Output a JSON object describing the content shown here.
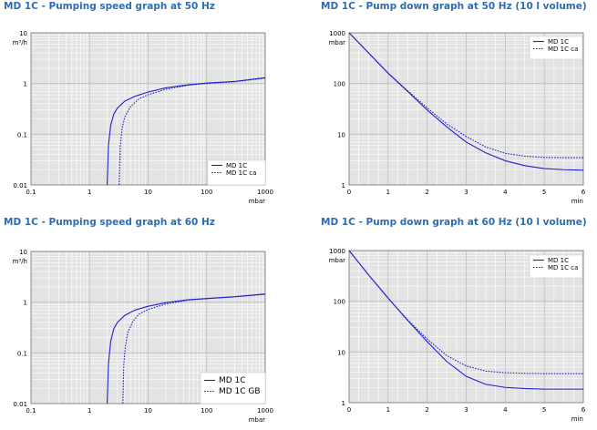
{
  "chart_data": [
    {
      "type": "line",
      "title": "MD 1C - Pumping speed graph at 50 Hz",
      "xlabel": "mbar",
      "ylabel": "m³/h",
      "xscale": "log",
      "yscale": "log",
      "xlim": [
        0.1,
        1000
      ],
      "ylim": [
        0.01,
        10
      ],
      "xticks": [
        "0.1",
        "1",
        "10",
        "100",
        "1000"
      ],
      "yticks": [
        "10",
        "1",
        "0.1",
        "0.01"
      ],
      "grid": true,
      "legend": "bottom-right",
      "series": [
        {
          "name": "MD 1C",
          "style": "solid",
          "color": "#2020d0",
          "x": [
            2.0,
            2.1,
            2.3,
            2.6,
            3.0,
            4.0,
            6.0,
            10,
            20,
            50,
            100,
            300,
            1000
          ],
          "y": [
            0.01,
            0.06,
            0.15,
            0.25,
            0.33,
            0.45,
            0.56,
            0.68,
            0.82,
            0.95,
            1.02,
            1.1,
            1.3
          ]
        },
        {
          "name": "MD 1C ca",
          "style": "dotted",
          "color": "#2020d0",
          "x": [
            3.2,
            3.35,
            3.6,
            4.0,
            5.0,
            7.0,
            10,
            20,
            50,
            100,
            300,
            1000
          ],
          "y": [
            0.01,
            0.06,
            0.13,
            0.22,
            0.35,
            0.5,
            0.6,
            0.77,
            0.93,
            1.0,
            1.08,
            1.28
          ]
        }
      ]
    },
    {
      "type": "line",
      "title": "MD 1C - Pump down graph at 50 Hz (10 l volume)",
      "xlabel": "min",
      "ylabel": "mbar",
      "xscale": "linear",
      "yscale": "log",
      "xlim": [
        0,
        6
      ],
      "ylim": [
        1,
        1000
      ],
      "xticks": [
        "0",
        "1",
        "2",
        "3",
        "4",
        "5",
        "6"
      ],
      "yticks": [
        "1000",
        "100",
        "10",
        "1"
      ],
      "grid": true,
      "legend": "top-right",
      "series": [
        {
          "name": "MD 1C",
          "style": "solid",
          "color": "#2020d0",
          "x": [
            0,
            0.5,
            1,
            1.5,
            2,
            2.5,
            3,
            3.5,
            4,
            4.5,
            5,
            5.5,
            6
          ],
          "y": [
            1000,
            400,
            160,
            70,
            30,
            14,
            7,
            4.3,
            3.0,
            2.4,
            2.1,
            2.0,
            1.95
          ]
        },
        {
          "name": "MD 1C ca",
          "style": "dotted",
          "color": "#2020d0",
          "x": [
            0,
            0.5,
            1,
            1.5,
            2,
            2.5,
            3,
            3.5,
            4,
            4.5,
            5,
            5.5,
            6
          ],
          "y": [
            1000,
            400,
            160,
            72,
            33,
            16,
            9,
            5.6,
            4.2,
            3.7,
            3.5,
            3.45,
            3.45
          ]
        }
      ]
    },
    {
      "type": "line",
      "title": "MD 1C - Pumping speed graph at 60 Hz",
      "xlabel": "mbar",
      "ylabel": "m³/h",
      "xscale": "log",
      "yscale": "log",
      "xlim": [
        0.1,
        1000
      ],
      "ylim": [
        0.01,
        10
      ],
      "xticks": [
        "0.1",
        "1",
        "10",
        "100",
        "1000"
      ],
      "yticks": [
        "10",
        "1",
        "0.1",
        "0.01"
      ],
      "grid": true,
      "legend": "bottom-right",
      "series": [
        {
          "name": "MD 1C",
          "style": "solid",
          "color": "#2020d0",
          "x": [
            2.0,
            2.1,
            2.3,
            2.6,
            3.0,
            4.0,
            6.0,
            10,
            20,
            50,
            100,
            300,
            1000
          ],
          "y": [
            0.01,
            0.06,
            0.17,
            0.3,
            0.4,
            0.55,
            0.7,
            0.83,
            0.98,
            1.12,
            1.18,
            1.28,
            1.45
          ]
        },
        {
          "name": "MD 1C GB",
          "style": "dotted",
          "color": "#2020d0",
          "x": [
            3.7,
            3.85,
            4.1,
            4.5,
            5.5,
            7.0,
            10,
            20,
            50,
            100,
            300,
            1000
          ],
          "y": [
            0.01,
            0.06,
            0.14,
            0.25,
            0.42,
            0.58,
            0.72,
            0.92,
            1.1,
            1.17,
            1.27,
            1.43
          ]
        }
      ]
    },
    {
      "type": "line",
      "title": "MD 1C - Pump down graph at 60 Hz (10 l volume)",
      "xlabel": "min",
      "ylabel": "mbar",
      "xscale": "linear",
      "yscale": "log",
      "xlim": [
        0,
        6
      ],
      "ylim": [
        1,
        1000
      ],
      "xticks": [
        "0",
        "1",
        "2",
        "3",
        "4",
        "5",
        "6"
      ],
      "yticks": [
        "1000",
        "100",
        "10",
        "1"
      ],
      "grid": true,
      "legend": "top-right",
      "series": [
        {
          "name": "MD 1C",
          "style": "solid",
          "color": "#2020d0",
          "x": [
            0,
            0.5,
            1,
            1.5,
            2,
            2.5,
            3,
            3.5,
            4,
            4.5,
            5,
            5.5,
            6
          ],
          "y": [
            1000,
            330,
            115,
            42,
            16,
            6.5,
            3.3,
            2.3,
            2.0,
            1.9,
            1.85,
            1.85,
            1.85
          ]
        },
        {
          "name": "MD 1C ca",
          "style": "dotted",
          "color": "#2020d0",
          "x": [
            0,
            0.5,
            1,
            1.5,
            2,
            2.5,
            3,
            3.5,
            4,
            4.5,
            5,
            5.5,
            6
          ],
          "y": [
            1000,
            330,
            115,
            43,
            18,
            8.5,
            5.3,
            4.2,
            3.9,
            3.8,
            3.75,
            3.75,
            3.75
          ]
        }
      ]
    }
  ]
}
